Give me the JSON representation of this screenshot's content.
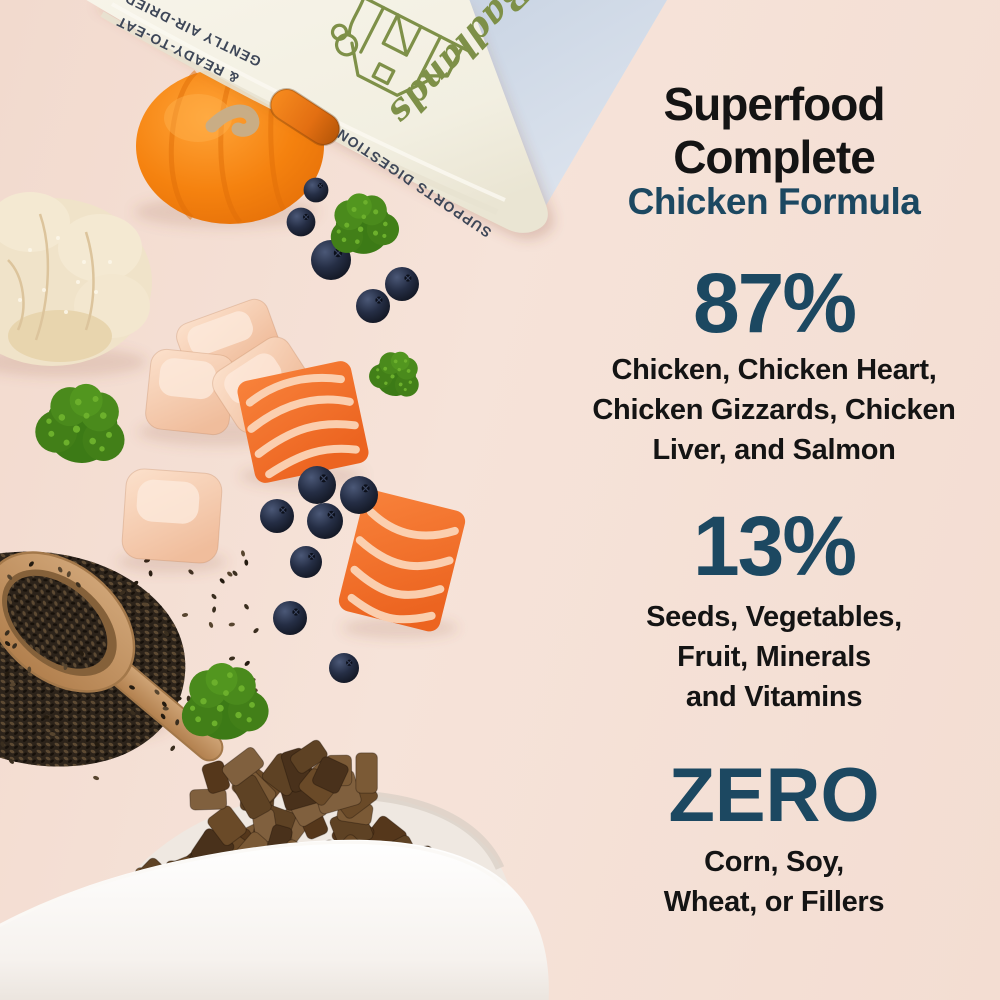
{
  "brand": {
    "script_logo": "Badlands",
    "claim_line1": "GENTLY AIR-DRIED",
    "claim_line2": "& READY-TO-EAT",
    "claim_digestion": "SUPPORTS DIGESTION"
  },
  "headline": {
    "line1": "Superfood",
    "line2": "Complete",
    "subtitle": "Chicken Formula"
  },
  "stats": [
    {
      "value": "87%",
      "desc_lines": [
        "Chicken, Chicken Heart,",
        "Chicken Gizzards, Chicken",
        "Liver, and Salmon"
      ]
    },
    {
      "value": "13%",
      "desc_lines": [
        "Seeds, Vegetables,",
        "Fruit, Minerals",
        "and Vitamins"
      ]
    },
    {
      "value": "ZERO",
      "desc_lines": [
        "Corn, Soy,",
        "Wheat, or Fillers"
      ]
    }
  ],
  "colors": {
    "bg_pink": "#f4ded4",
    "ink": "#141414",
    "teal": "#1c4861",
    "pouch_cream": "#f3f0e3",
    "pouch_text": "#3e4758",
    "logo_olive": "#7e9048",
    "backdrop_blue": "#cfd9e6",
    "pumpkin_orange": "#f5820f",
    "salmon_orange": "#f2702a",
    "chicken_pink": "#f7d2b8",
    "broccoli_green": "#47891b",
    "blueberry_navy": "#222a3d",
    "chia_brown": "#2c231a",
    "wood_tan": "#c69c6d",
    "bowl_white": "#ffffff",
    "kibble_brown": "#6b4a28"
  },
  "scene": [
    "product-pouch",
    "blue-backdrop",
    "mini-pumpkin",
    "cauliflower",
    "broccoli-florets",
    "blueberries",
    "chicken-breast-cubes",
    "salmon-cubes",
    "chia-seeds-on-wooden-spoon",
    "white-dog-bowl",
    "air-dried-food-pieces"
  ]
}
